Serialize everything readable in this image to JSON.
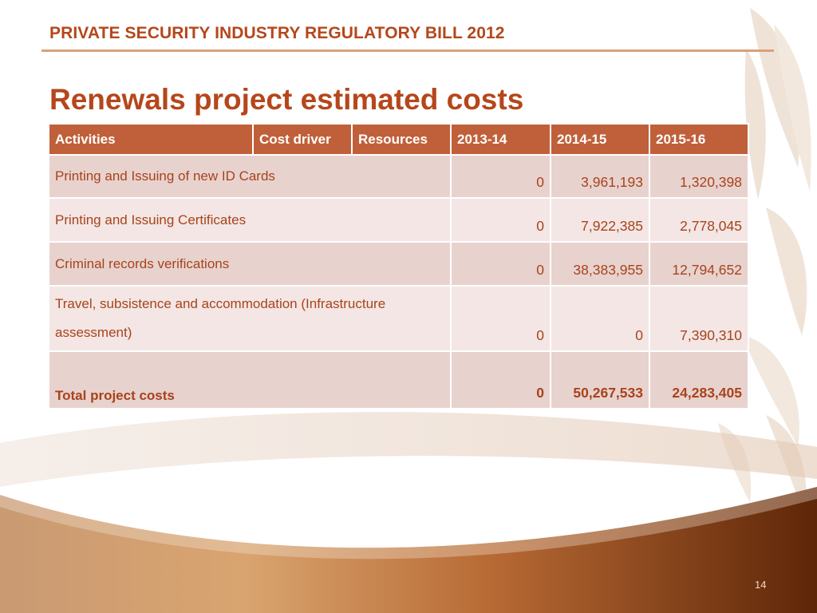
{
  "header": {
    "title": "PRIVATE SECURITY INDUSTRY REGULATORY BILL 2012"
  },
  "slide": {
    "title": "Renewals project estimated costs",
    "page_number": "14"
  },
  "table": {
    "columns": [
      "Activities",
      "Cost driver",
      "Resources",
      "2013-14",
      "2014-15",
      "2015-16"
    ],
    "rows": [
      {
        "activity": "Printing and Issuing of new ID Cards",
        "y2013_14": "0",
        "y2014_15": "3,961,193",
        "y2015_16": "1,320,398"
      },
      {
        "activity": "Printing and Issuing Certificates",
        "y2013_14": "0",
        "y2014_15": "7,922,385",
        "y2015_16": "2,778,045"
      },
      {
        "activity": "Criminal records verifications",
        "y2013_14": "0",
        "y2014_15": "38,383,955",
        "y2015_16": "12,794,652"
      },
      {
        "activity": "Travel, subsistence and accommodation (Infrastructure assessment)",
        "y2013_14": "0",
        "y2014_15": "0",
        "y2015_16": "7,390,310"
      }
    ],
    "total": {
      "label": "Total project costs",
      "y2013_14": "0",
      "y2014_15": "50,267,533",
      "y2015_16": "24,283,405"
    }
  },
  "colors": {
    "accent": "#b5471b",
    "header_fill": "#c0603a",
    "row_dark": "#e8d2ce",
    "row_light": "#f3e6e4",
    "swoosh_dark": "#6b2c0e",
    "swoosh_light": "#d9a46f"
  }
}
